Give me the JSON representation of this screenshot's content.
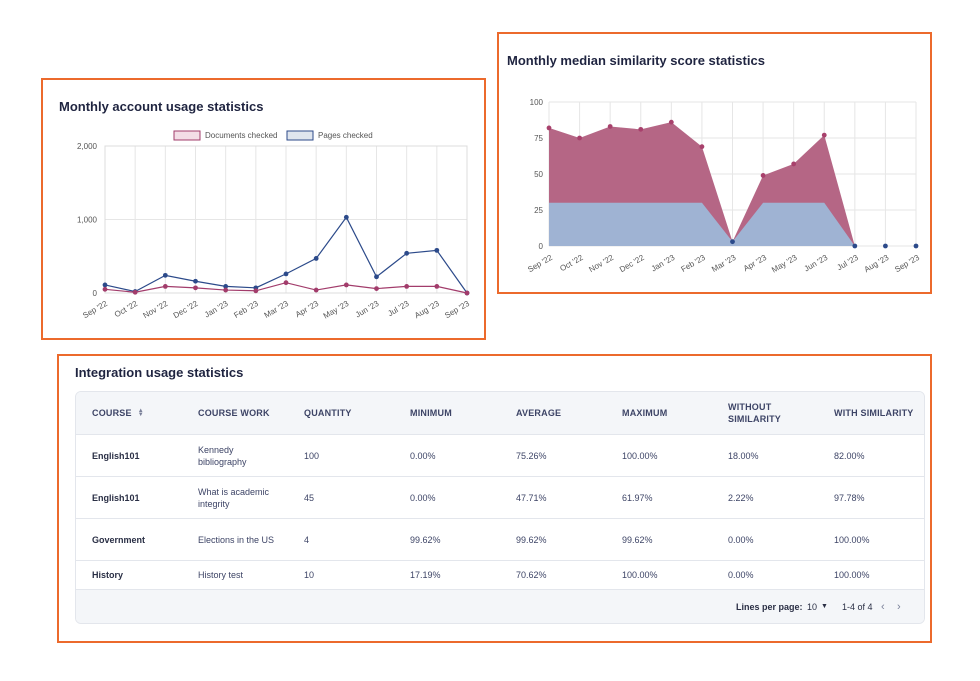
{
  "usage_chart": {
    "title": "Monthly account usage statistics",
    "chart_data": {
      "type": "line",
      "x": [
        "Sep '22",
        "Oct '22",
        "Nov '22",
        "Dec '22",
        "Jan '23",
        "Feb '23",
        "Mar '23",
        "Apr '23",
        "May '23",
        "Jun '23",
        "Jul '23",
        "Aug '23",
        "Sep '23"
      ],
      "series": [
        {
          "name": "Documents checked",
          "color": "#a23c6b",
          "fill": "#f3dde6",
          "values": [
            50,
            10,
            90,
            70,
            40,
            30,
            140,
            40,
            110,
            60,
            90,
            90,
            0
          ]
        },
        {
          "name": "Pages checked",
          "color": "#2c4a8a",
          "fill": "#dfe5ee",
          "values": [
            110,
            20,
            240,
            160,
            90,
            70,
            260,
            470,
            1030,
            220,
            540,
            580,
            0
          ]
        }
      ],
      "yticks": [
        "0",
        "1,000",
        "2,000"
      ],
      "ylim": [
        0,
        2000
      ],
      "legend": "top",
      "grid": true
    }
  },
  "similarity_chart": {
    "title": "Monthly median similarity score statistics",
    "chart_data": {
      "type": "area",
      "x": [
        "Sep '22",
        "Oct '22",
        "Nov '22",
        "Dec '22",
        "Jan '23",
        "Feb '23",
        "Mar '23",
        "Apr '23",
        "May '23",
        "Jun '23",
        "Jul '23",
        "Aug '23",
        "Sep '23"
      ],
      "series": [
        {
          "color": "#a8416c",
          "fill": "#b56685",
          "values": [
            82,
            75,
            83,
            81,
            86,
            69,
            3,
            49,
            57,
            77,
            0,
            0,
            0
          ]
        },
        {
          "color": "#9fb3d3",
          "fill": "#9fb3d3",
          "values": [
            30,
            30,
            30,
            30,
            30,
            30,
            3,
            30,
            30,
            30,
            0,
            0,
            0
          ]
        }
      ],
      "yticks": [
        "0",
        "25",
        "50",
        "75",
        "100"
      ],
      "ylim": [
        0,
        100
      ],
      "grid": true
    }
  },
  "integration": {
    "title": "Integration usage statistics",
    "columns": [
      "COURSE",
      "COURSE WORK",
      "QUANTITY",
      "MINIMUM",
      "AVERAGE",
      "MAXIMUM",
      "WITHOUT SIMILARITY",
      "WITH SIMILARITY"
    ],
    "rows": [
      [
        "English101",
        "Kennedy bibliography",
        "100",
        "0.00%",
        "75.26%",
        "100.00%",
        "18.00%",
        "82.00%"
      ],
      [
        "English101",
        "What is academic integrity",
        "45",
        "0.00%",
        "47.71%",
        "61.97%",
        "2.22%",
        "97.78%"
      ],
      [
        "Government",
        "Elections in the US",
        "4",
        "99.62%",
        "99.62%",
        "99.62%",
        "0.00%",
        "100.00%"
      ],
      [
        "History",
        "History test",
        "10",
        "17.19%",
        "70.62%",
        "100.00%",
        "0.00%",
        "100.00%"
      ]
    ],
    "pagination": {
      "lines_label": "Lines per page:",
      "lines_value": "10",
      "range": "1-4 of 4"
    }
  }
}
